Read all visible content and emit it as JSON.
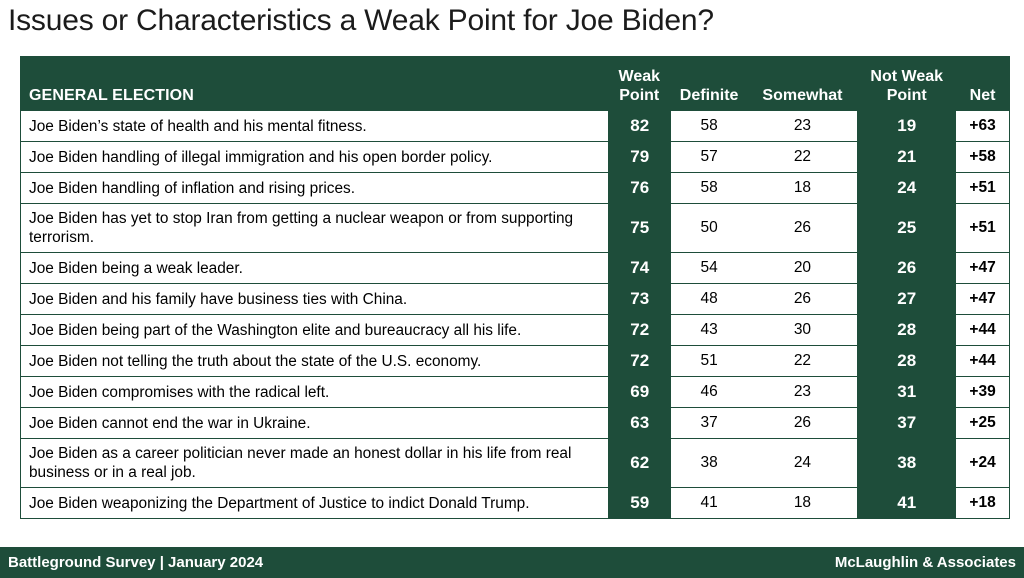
{
  "title": "Issues or Characteristics a Weak Point for Joe Biden?",
  "chart_data": {
    "type": "table",
    "title": "Issues or Characteristics a Weak Point for Joe Biden?",
    "columns": [
      "GENERAL ELECTION",
      "Weak Point",
      "Definite",
      "Somewhat",
      "Not Weak Point",
      "Net"
    ],
    "header": {
      "label": "GENERAL ELECTION",
      "weak_line1": "Weak",
      "weak_line2": "Point",
      "definite": "Definite",
      "somewhat": "Somewhat",
      "notweak_line1": "Not Weak",
      "notweak_line2": "Point",
      "net": "Net"
    },
    "rows": [
      {
        "label": "Joe Biden’s state of health and his mental fitness.",
        "weak": "82",
        "definite": "58",
        "somewhat": "23",
        "not_weak": "19",
        "net": "+63"
      },
      {
        "label": "Joe Biden handling of illegal immigration and his open border policy.",
        "weak": "79",
        "definite": "57",
        "somewhat": "22",
        "not_weak": "21",
        "net": "+58"
      },
      {
        "label": "Joe Biden handling of inflation and rising prices.",
        "weak": "76",
        "definite": "58",
        "somewhat": "18",
        "not_weak": "24",
        "net": "+51"
      },
      {
        "label": "Joe Biden has yet to stop Iran from getting a nuclear weapon or from supporting terrorism.",
        "weak": "75",
        "definite": "50",
        "somewhat": "26",
        "not_weak": "25",
        "net": "+51"
      },
      {
        "label": "Joe Biden being a weak leader.",
        "weak": "74",
        "definite": "54",
        "somewhat": "20",
        "not_weak": "26",
        "net": "+47"
      },
      {
        "label": "Joe Biden and his family have business ties with China.",
        "weak": "73",
        "definite": "48",
        "somewhat": "26",
        "not_weak": "27",
        "net": "+47"
      },
      {
        "label": "Joe Biden being part of the Washington elite and bureaucracy all his life.",
        "weak": "72",
        "definite": "43",
        "somewhat": "30",
        "not_weak": "28",
        "net": "+44"
      },
      {
        "label": "Joe Biden not telling the truth about the state of the U.S. economy.",
        "weak": "72",
        "definite": "51",
        "somewhat": "22",
        "not_weak": "28",
        "net": "+44"
      },
      {
        "label": "Joe Biden compromises with the radical left.",
        "weak": "69",
        "definite": "46",
        "somewhat": "23",
        "not_weak": "31",
        "net": "+39"
      },
      {
        "label": "Joe Biden cannot end the war in Ukraine.",
        "weak": "63",
        "definite": "37",
        "somewhat": "26",
        "not_weak": "37",
        "net": "+25"
      },
      {
        "label": "Joe Biden as a career politician never made an honest dollar in his life from real business or in a real job.",
        "weak": "62",
        "definite": "38",
        "somewhat": "24",
        "not_weak": "38",
        "net": "+24"
      },
      {
        "label": "Joe Biden weaponizing the Department of Justice to indict Donald Trump.",
        "weak": "59",
        "definite": "41",
        "somewhat": "18",
        "not_weak": "41",
        "net": "+18"
      }
    ]
  },
  "footer": {
    "left": "Battleground Survey | January 2024",
    "right": "McLaughlin & Associates"
  },
  "colors": {
    "accent": "#1e4d3a",
    "text": "#000000",
    "background": "#ffffff"
  }
}
